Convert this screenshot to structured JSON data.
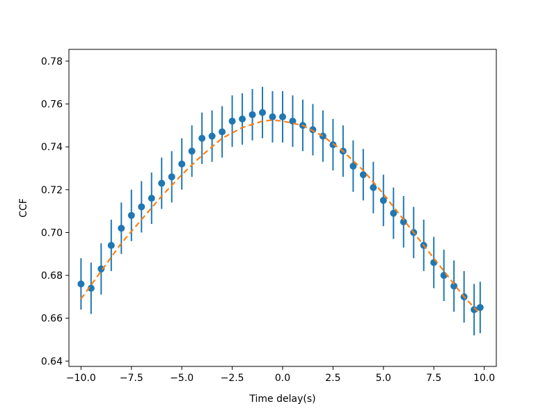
{
  "chart_data": {
    "type": "scatter",
    "title": "",
    "xlabel": "Time delay(s)",
    "ylabel": "CCF",
    "xlim": [
      -10.6,
      10.6
    ],
    "ylim": [
      0.6375,
      0.7855
    ],
    "grid": false,
    "xticks": [
      -10.0,
      -7.5,
      -5.0,
      -2.5,
      0.0,
      2.5,
      5.0,
      7.5,
      10.0
    ],
    "xtick_labels": [
      "−10.0",
      "−7.5",
      "−5.0",
      "−2.5",
      "0.0",
      "2.5",
      "5.0",
      "7.5",
      "10.0"
    ],
    "yticks": [
      0.64,
      0.66,
      0.68,
      0.7,
      0.72,
      0.74,
      0.76,
      0.78
    ],
    "ytick_labels": [
      "0.64",
      "0.66",
      "0.68",
      "0.70",
      "0.72",
      "0.74",
      "0.76",
      "0.78"
    ],
    "colors": {
      "points": "#1f77b4",
      "fit": "#ff7f0e"
    },
    "series": [
      {
        "style": "points-with-errorbars",
        "x": [
          -10.0,
          -9.5,
          -9.0,
          -8.5,
          -8.0,
          -7.5,
          -7.0,
          -6.5,
          -6.0,
          -5.5,
          -5.0,
          -4.5,
          -4.0,
          -3.5,
          -3.0,
          -2.5,
          -2.0,
          -1.5,
          -1.0,
          -0.5,
          0.0,
          0.5,
          1.0,
          1.5,
          2.0,
          2.5,
          3.0,
          3.5,
          4.0,
          4.5,
          5.0,
          5.5,
          6.0,
          6.5,
          7.0,
          7.5,
          8.0,
          8.5,
          9.0,
          9.5,
          9.8
        ],
        "y": [
          0.676,
          0.674,
          0.683,
          0.694,
          0.702,
          0.708,
          0.712,
          0.716,
          0.723,
          0.726,
          0.732,
          0.738,
          0.744,
          0.745,
          0.747,
          0.752,
          0.753,
          0.755,
          0.756,
          0.754,
          0.754,
          0.752,
          0.75,
          0.748,
          0.745,
          0.741,
          0.738,
          0.731,
          0.727,
          0.721,
          0.715,
          0.709,
          0.705,
          0.7,
          0.694,
          0.686,
          0.68,
          0.675,
          0.67,
          0.664,
          0.665
        ],
        "yerr": [
          0.012,
          0.012,
          0.012,
          0.012,
          0.012,
          0.012,
          0.012,
          0.012,
          0.012,
          0.012,
          0.012,
          0.012,
          0.012,
          0.012,
          0.012,
          0.012,
          0.012,
          0.012,
          0.012,
          0.012,
          0.012,
          0.012,
          0.012,
          0.012,
          0.012,
          0.012,
          0.012,
          0.012,
          0.012,
          0.012,
          0.012,
          0.012,
          0.012,
          0.012,
          0.012,
          0.012,
          0.012,
          0.012,
          0.012,
          0.012,
          0.012
        ]
      },
      {
        "style": "dashed-fit-curve",
        "x": [
          -10.0,
          -9.0,
          -8.0,
          -7.0,
          -6.0,
          -5.0,
          -4.0,
          -3.0,
          -2.0,
          -1.0,
          -0.5,
          0.0,
          1.0,
          2.0,
          3.0,
          4.0,
          5.0,
          6.0,
          7.0,
          8.0,
          9.0,
          9.7
        ],
        "y": [
          0.669,
          0.682,
          0.695,
          0.706,
          0.717,
          0.727,
          0.736,
          0.744,
          0.749,
          0.752,
          0.7525,
          0.752,
          0.75,
          0.745,
          0.738,
          0.729,
          0.718,
          0.706,
          0.694,
          0.682,
          0.67,
          0.663
        ]
      }
    ]
  }
}
